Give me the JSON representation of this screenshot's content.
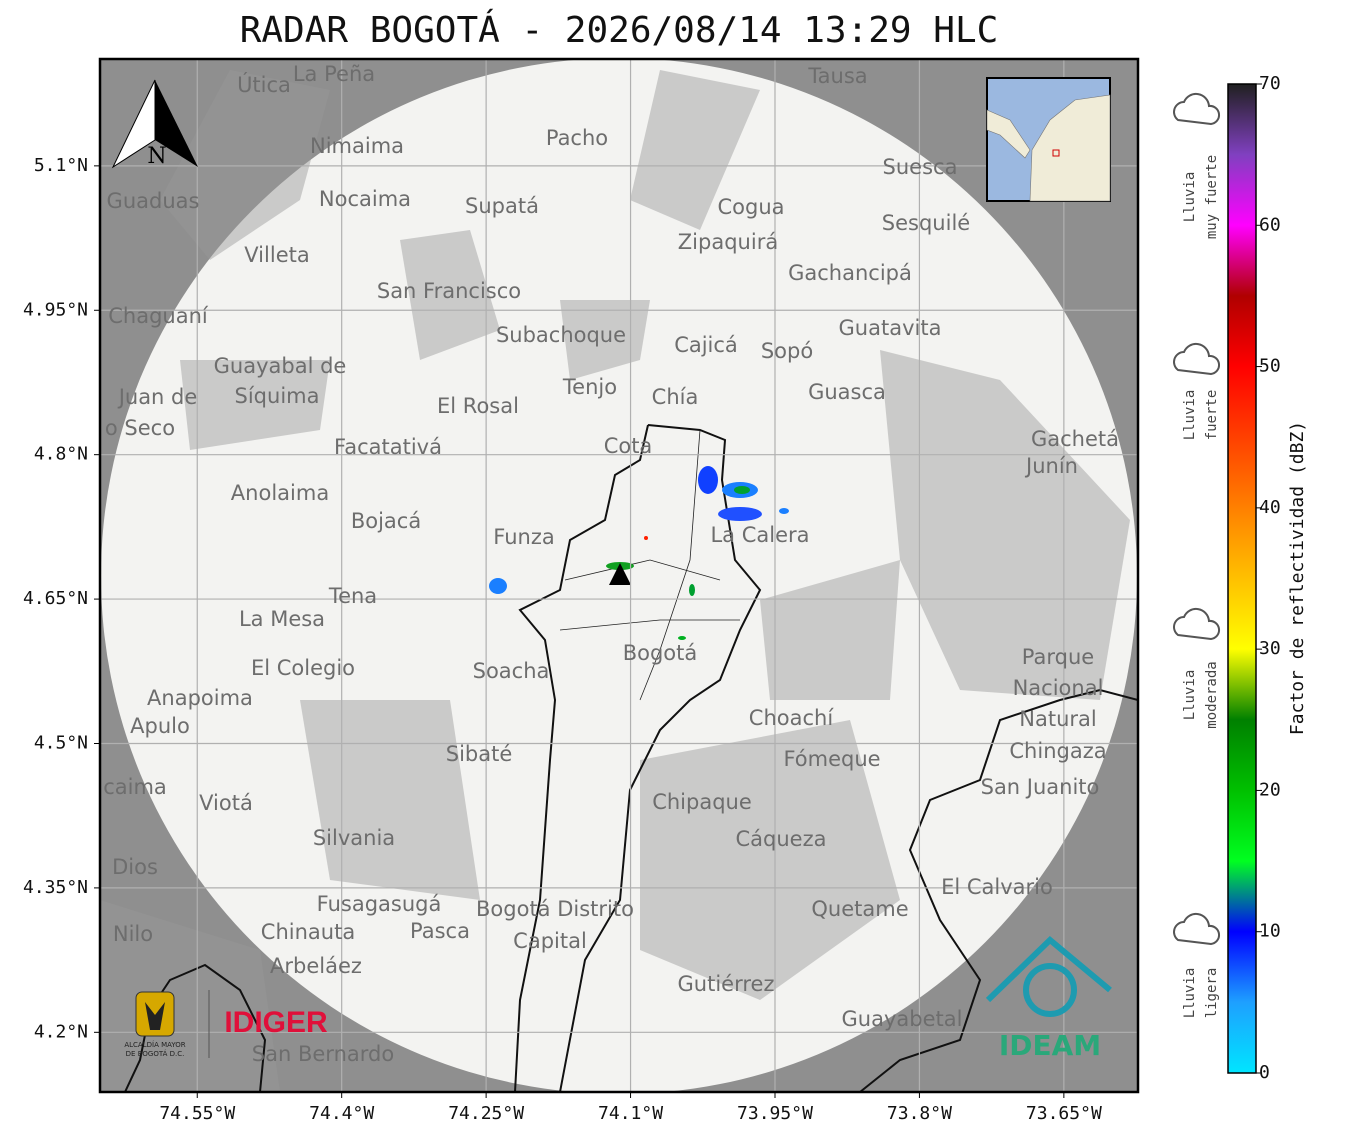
{
  "title": "RADAR BOGOTÁ - 2026/08/14 13:29 HLC",
  "map": {
    "xlim": [
      -74.651,
      -73.573
    ],
    "ylim": [
      4.138,
      5.211
    ],
    "grid": true,
    "xticks": [
      {
        "value": -74.55,
        "label": "74.55°W"
      },
      {
        "value": -74.4,
        "label": "74.4°W"
      },
      {
        "value": -74.25,
        "label": "74.25°W"
      },
      {
        "value": -74.1,
        "label": "74.1°W"
      },
      {
        "value": -73.95,
        "label": "73.95°W"
      },
      {
        "value": -73.8,
        "label": "73.8°W"
      },
      {
        "value": -73.65,
        "label": "73.65°W"
      }
    ],
    "yticks": [
      {
        "value": 5.1,
        "label": "5.1°N"
      },
      {
        "value": 4.95,
        "label": "4.95°N"
      },
      {
        "value": 4.8,
        "label": "4.8°N"
      },
      {
        "value": 4.65,
        "label": "4.65°N"
      },
      {
        "value": 4.5,
        "label": "4.5°N"
      },
      {
        "value": 4.35,
        "label": "4.35°N"
      },
      {
        "value": 4.2,
        "label": "4.2°N"
      }
    ],
    "places": [
      "La Peña",
      "Útica",
      "Tausa",
      "Pacho",
      "Nimaima",
      "Guaduas",
      "Nocaima",
      "Supatá",
      "Suesca",
      "Cogua",
      "Sesquilé",
      "Zipaquirá",
      "Villeta",
      "Gachancipá",
      "San Francisco",
      "Chaguaní",
      "Guatavita",
      "Subachoque",
      "Cajicá",
      "Sopó",
      "Guayabal de",
      "Síquima",
      "Juan de",
      "o Seco",
      "Tenjo",
      "Guasca",
      "El Rosal",
      "Chía",
      "Cota",
      "Gachetá",
      "Junín",
      "Facatativá",
      "Anolaima",
      "Bojacá",
      "Funza",
      "La Calera",
      "Tena",
      "La Mesa",
      "Bogotá",
      "Soacha",
      "El Colegio",
      "Parque",
      "Nacional",
      "Natural",
      "Chingaza",
      "Anapoima",
      "Apulo",
      "Choachí",
      "Fómeque",
      "Sibaté",
      "San Juanito",
      "caima",
      "Viotá",
      "Chipaque",
      "Silvania",
      "Cáqueza",
      "Dios",
      "El Calvario",
      "Fusagasugá",
      "Bogotá Distrito",
      "Capital",
      "Quetame",
      "Nilo",
      "Chinauta",
      "Pasca",
      "Arbeláez",
      "Gutiérrez",
      "Guayabetal",
      "San Bernardo"
    ]
  },
  "north": "N",
  "colorbar": {
    "label": "Factor de reflectividad (dBZ)",
    "lim": [
      0,
      70
    ],
    "ticks": [
      0,
      10,
      20,
      30,
      40,
      50,
      60,
      70
    ],
    "colors": [
      "#00e5ff",
      "#1ea0ff",
      "#0000ff",
      "#00ff20",
      "#00c000",
      "#008000",
      "#ffff00",
      "#ffc000",
      "#ff8000",
      "#ff4000",
      "#ff0000",
      "#b00000",
      "#ff00ff",
      "#8040c0",
      "#202020"
    ],
    "categories": [
      [
        "Lluvia",
        "muy fuerte"
      ],
      [
        "Lluvia",
        "fuerte"
      ],
      [
        "Lluvia",
        "moderada"
      ],
      [
        "Lluvia",
        "ligera"
      ]
    ]
  },
  "logos": {
    "alcaldia": [
      "ALCALDÍA MAYOR",
      "DE BOGOTÁ D.C."
    ],
    "idiger": "IDIGER",
    "ideam": "IDEAM"
  }
}
